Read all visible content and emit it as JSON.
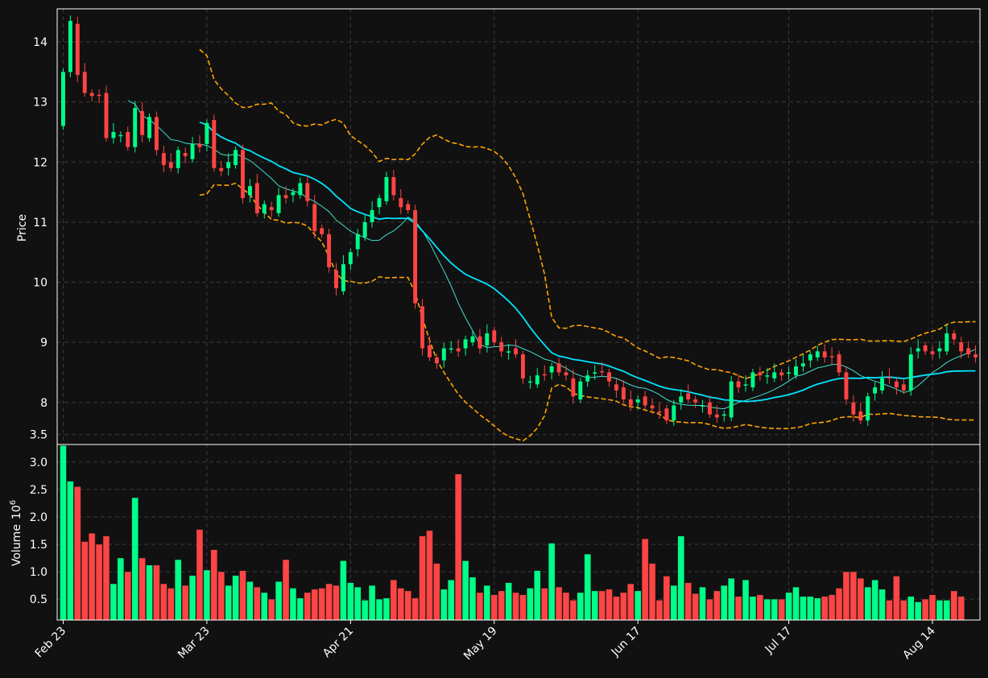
{
  "chart_data": {
    "type": "candlestick",
    "price_panel": {
      "ylabel": "Price",
      "ylim": [
        7.3,
        14.55
      ],
      "yticks": [
        8,
        9,
        10,
        11,
        12,
        13,
        14
      ],
      "grid": true
    },
    "volume_panel": {
      "ylabel": "Volume",
      "ylabel_exponent": "10",
      "ylabel_exponent_power": "6",
      "ylim": [
        0.12,
        3.32
      ],
      "yticks": [
        0.5,
        1.0,
        1.5,
        2.0,
        2.5,
        3.0,
        3.5
      ],
      "unit": "millions"
    },
    "x_tick_labels": [
      {
        "index": 0,
        "label": "Feb 23"
      },
      {
        "index": 20,
        "label": "Mar 23"
      },
      {
        "index": 40,
        "label": "Apr 21"
      },
      {
        "index": 60,
        "label": "May 19"
      },
      {
        "index": 80,
        "label": "Jun 17"
      },
      {
        "index": 101,
        "label": "Jul 17"
      },
      {
        "index": 121,
        "label": "Aug 14"
      }
    ],
    "colors": {
      "up": "#00ff88",
      "down": "#ff4444",
      "background": "#111111",
      "grid": "#3a3a3a",
      "ma_short": "#40e0d0",
      "ma_long": "#00e5ff",
      "bollinger": "#ffa500",
      "spine": "#ffffff"
    },
    "overlays": [
      "moving average (short)",
      "moving average (long)",
      "bollinger upper",
      "bollinger lower"
    ],
    "series": [
      {
        "name": "close",
        "values": [
          13.5,
          14.35,
          13.45,
          13.15,
          13.1,
          13.1,
          12.4,
          12.5,
          12.45,
          12.25,
          12.9,
          12.45,
          12.75,
          12.2,
          11.95,
          11.9,
          12.2,
          12.1,
          12.3,
          12.25,
          12.65,
          11.9,
          11.85,
          12.0,
          12.2,
          11.4,
          11.6,
          11.15,
          11.3,
          11.2,
          11.45,
          11.4,
          11.5,
          11.65,
          11.35,
          10.85,
          10.8,
          10.25,
          9.9,
          10.3,
          10.5,
          10.8,
          11.0,
          11.2,
          11.4,
          11.75,
          11.45,
          11.25,
          11.2,
          9.65,
          8.9,
          8.75,
          8.65,
          8.9,
          8.9,
          8.85,
          9.05,
          9.1,
          8.9,
          9.15,
          9.0,
          8.85,
          8.85,
          8.8,
          8.4,
          8.35,
          8.45,
          8.45,
          8.6,
          8.5,
          8.45,
          8.1,
          8.35,
          8.45,
          8.5,
          8.5,
          8.35,
          8.2,
          8.05,
          7.95,
          8.05,
          7.95,
          7.9,
          7.85,
          7.7,
          7.95,
          8.1,
          8.05,
          8.0,
          7.95,
          7.8,
          7.75,
          7.8,
          8.35,
          8.25,
          8.3,
          8.5,
          8.45,
          8.45,
          8.5,
          8.45,
          8.5,
          8.6,
          8.65,
          8.8,
          8.85,
          8.75,
          8.75,
          8.5,
          8.05,
          7.8,
          7.7,
          8.1,
          8.25,
          8.4,
          8.4,
          8.25,
          8.2,
          8.8,
          8.9,
          8.85,
          8.8,
          8.9,
          9.15,
          9.05,
          8.85,
          8.8,
          8.75
        ]
      },
      {
        "name": "volume",
        "values": [
          3.3,
          2.65,
          2.55,
          1.55,
          1.7,
          1.5,
          1.65,
          0.78,
          1.25,
          1.0,
          2.35,
          1.25,
          1.12,
          1.12,
          0.78,
          0.7,
          1.22,
          0.75,
          0.93,
          1.77,
          1.03,
          1.4,
          1.0,
          0.75,
          0.93,
          1.02,
          0.82,
          0.72,
          0.62,
          0.5,
          0.82,
          1.22,
          0.7,
          0.52,
          0.62,
          0.68,
          0.7,
          0.78,
          0.75,
          1.2,
          0.8,
          0.72,
          0.48,
          0.75,
          0.5,
          0.52,
          0.85,
          0.7,
          0.65,
          0.52,
          1.65,
          1.75,
          1.15,
          0.68,
          0.85,
          2.78,
          1.2,
          0.9,
          0.62,
          0.75,
          0.58,
          0.65,
          0.8,
          0.62,
          0.58,
          0.7,
          1.02,
          0.7,
          1.52,
          0.72,
          0.62,
          0.48,
          0.62,
          1.32,
          0.65,
          0.65,
          0.68,
          0.55,
          0.62,
          0.78,
          0.65,
          1.6,
          1.15,
          0.48,
          0.92,
          0.75,
          1.65,
          0.8,
          0.6,
          0.72,
          0.5,
          0.65,
          0.75,
          0.88,
          0.55,
          0.85,
          0.55,
          0.58,
          0.5,
          0.5,
          0.5,
          0.62,
          0.72,
          0.55,
          0.55,
          0.52,
          0.55,
          0.58,
          0.7,
          1.0,
          1.0,
          0.88,
          0.72,
          0.85,
          0.68,
          0.48,
          0.92,
          0.48,
          0.55,
          0.45,
          0.5,
          0.58,
          0.48,
          0.48,
          0.65,
          0.55
        ]
      }
    ]
  }
}
